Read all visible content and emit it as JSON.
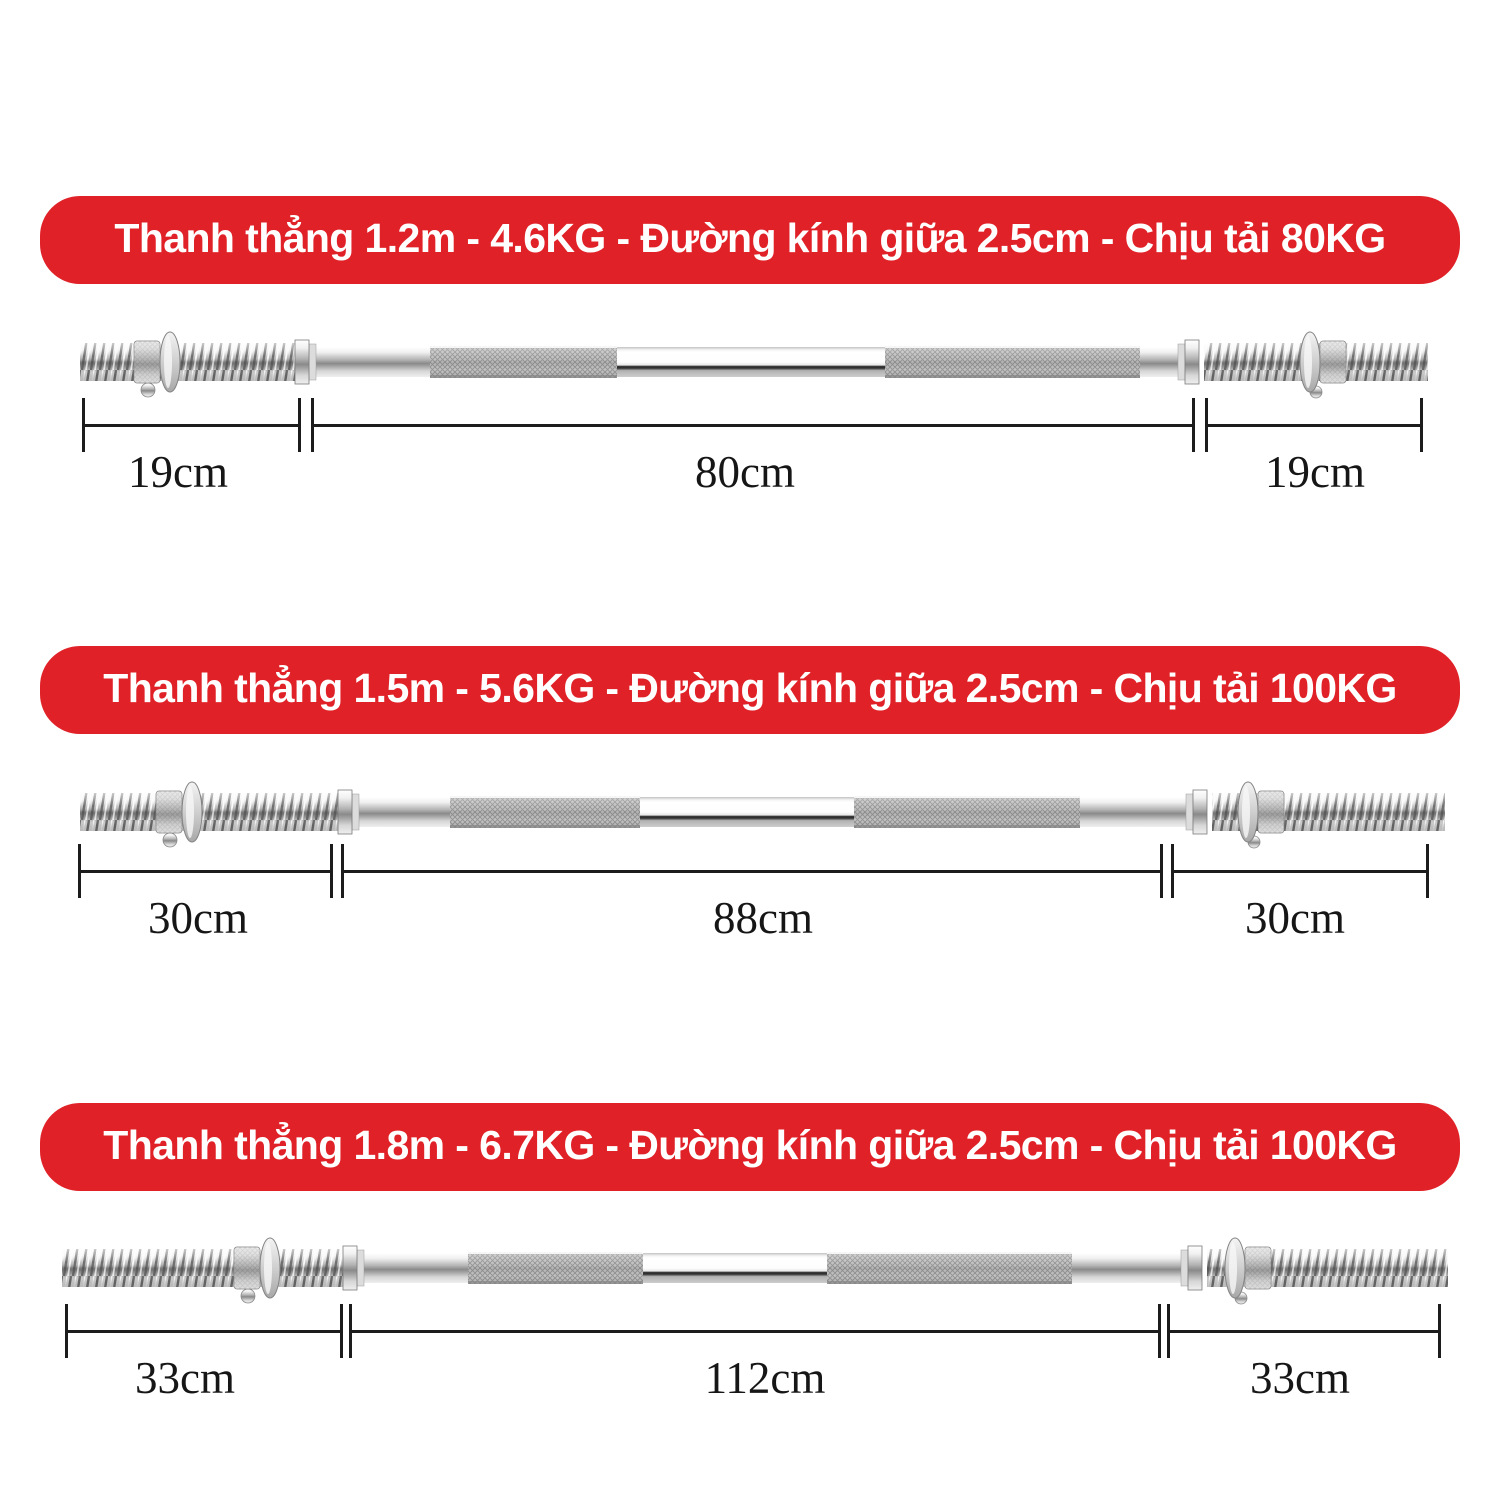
{
  "colors": {
    "banner_bg": "#e02127",
    "banner_text": "#ffffff",
    "dimension_marks": "#1c1c1c",
    "page_bg": "#ffffff"
  },
  "sections": [
    {
      "banner_label": "Thanh thẳng 1.2m - 4.6KG - Đường kính giữa 2.5cm - Chịu tải 80KG",
      "dimensions": {
        "left": "19cm",
        "center": "80cm",
        "right": "19cm"
      }
    },
    {
      "banner_label": "Thanh thẳng 1.5m - 5.6KG - Đường kính giữa 2.5cm - Chịu tải 100KG",
      "dimensions": {
        "left": "30cm",
        "center": "88cm",
        "right": "30cm"
      }
    },
    {
      "banner_label": "Thanh thẳng 1.8m - 6.7KG - Đường kính giữa 2.5cm - Chịu tải 100KG",
      "dimensions": {
        "left": "33cm",
        "center": "112cm",
        "right": "33cm"
      }
    }
  ]
}
